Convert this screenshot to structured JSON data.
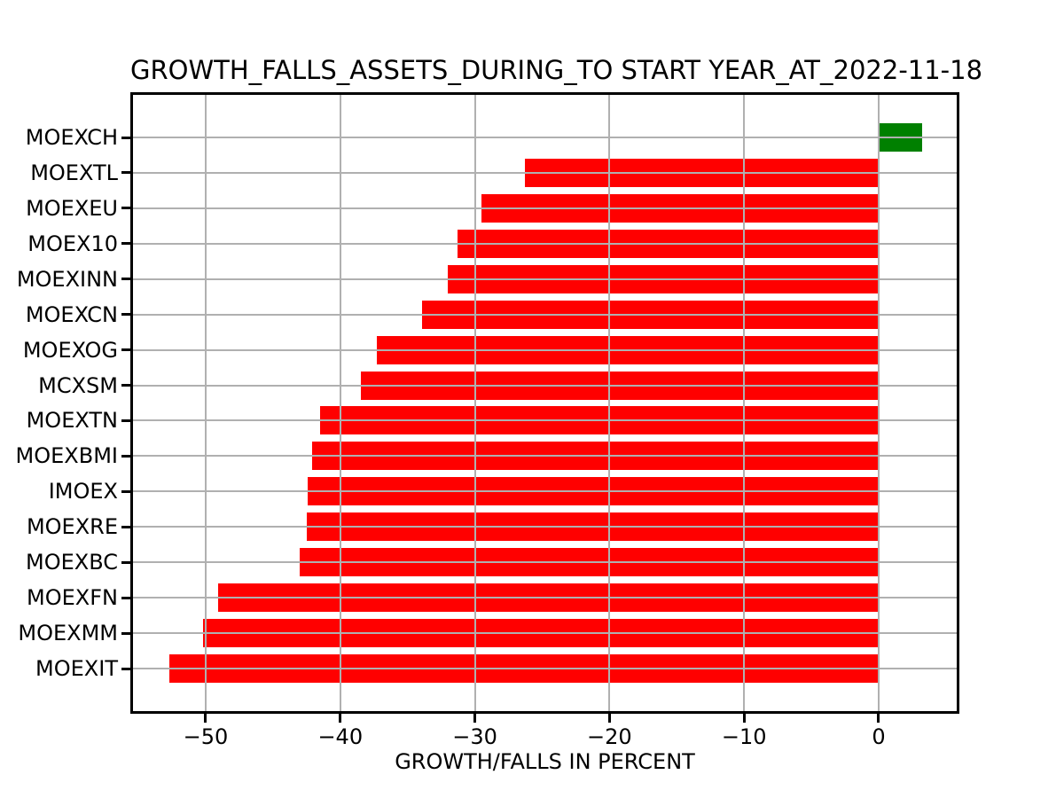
{
  "figure": {
    "background": "#ffffff"
  },
  "chart_data": {
    "type": "bar",
    "orientation": "horizontal",
    "title": "GROWTH_FALLS_ASSETS_DURING_TO START YEAR_AT_2022-11-18",
    "xlabel": "GROWTH/FALLS IN PERCENT",
    "ylabel": "",
    "categories": [
      "MOEXCH",
      "MOEXTL",
      "MOEXEU",
      "MOEX10",
      "MOEXINN",
      "MOEXCN",
      "MOEXOG",
      "MCXSM",
      "MOEXTN",
      "MOEXBMI",
      "IMOEX",
      "MOEXRE",
      "MOEXBC",
      "MOEXFN",
      "MOEXMM",
      "MOEXIT"
    ],
    "values": [
      3.2,
      -26.3,
      -29.5,
      -31.3,
      -32.0,
      -33.9,
      -37.3,
      -38.5,
      -41.5,
      -42.1,
      -42.4,
      -42.5,
      -43.0,
      -49.1,
      -50.2,
      -52.7
    ],
    "positive_color": "#008000",
    "negative_color": "#ff0000",
    "xlim": [
      -55.4,
      5.8
    ],
    "xticks": [
      -50,
      -40,
      -30,
      -20,
      -10,
      0
    ],
    "xtick_labels": [
      "−50",
      "−40",
      "−30",
      "−20",
      "−10",
      "0"
    ],
    "grid": true,
    "grid_color": "#b0b0b0",
    "axis_color": "#000000",
    "legend_position": "none"
  }
}
